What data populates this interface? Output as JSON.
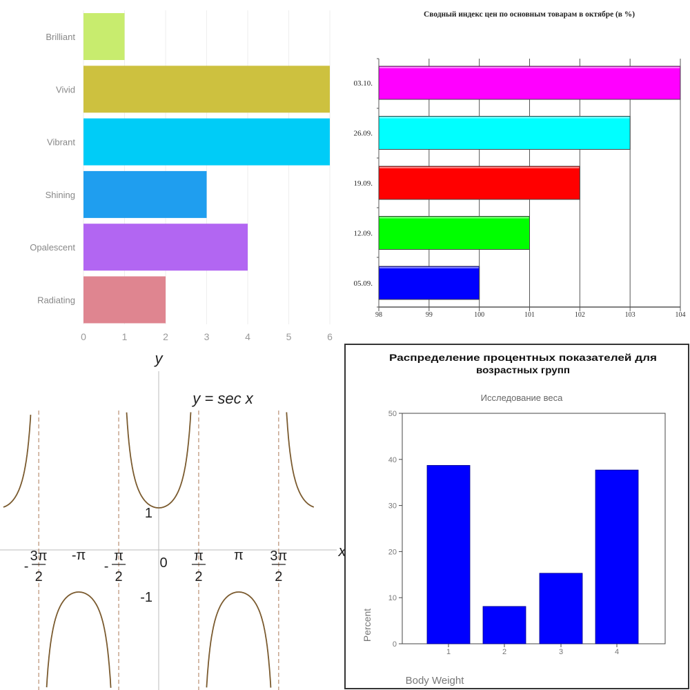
{
  "chart_data": [
    {
      "type": "bar",
      "orientation": "horizontal",
      "categories": [
        "Brilliant",
        "Vivid",
        "Vibrant",
        "Shining",
        "Opalescent",
        "Radiating"
      ],
      "values": [
        1,
        6,
        6,
        3,
        4,
        2
      ],
      "colors": [
        "#c8ec6e",
        "#cdc13f",
        "#00ccf7",
        "#1f9eef",
        "#b266f2",
        "#df8590"
      ],
      "xlim": [
        0,
        6
      ],
      "xticks": [
        "0",
        "1",
        "2",
        "3",
        "4",
        "5",
        "6"
      ],
      "grid": true
    },
    {
      "type": "bar",
      "orientation": "horizontal",
      "title": "Сводный индекс цен по основным товарам в октябре (в %)",
      "categories": [
        "03.10.",
        "26.09.",
        "19.09.",
        "12.09.",
        "05.09."
      ],
      "values": [
        104,
        103,
        102,
        101,
        100
      ],
      "colors": [
        "#ff00ff",
        "#00ffff",
        "#ff0000",
        "#00ff00",
        "#0000ff"
      ],
      "xlim": [
        98,
        104
      ],
      "xticks": [
        "98",
        "99",
        "100",
        "101",
        "102",
        "103",
        "104"
      ],
      "grid": true
    },
    {
      "type": "line",
      "function_label": "y = sec x",
      "xlabel": "x",
      "ylabel": "y",
      "x_tick_labels": [
        {
          "sign": "-",
          "num": "3π",
          "den": "2",
          "x": -4.712
        },
        {
          "sign": "",
          "num": "-π",
          "den": "",
          "x": -3.1416
        },
        {
          "sign": "-",
          "num": "π",
          "den": "2",
          "x": -1.5708
        },
        {
          "sign": "",
          "num": "0",
          "den": "",
          "x": 0
        },
        {
          "sign": "",
          "num": "π",
          "den": "2",
          "x": 1.5708
        },
        {
          "sign": "",
          "num": "π",
          "den": "",
          "x": 3.1416
        },
        {
          "sign": "",
          "num": "3π",
          "den": "2",
          "x": 4.712
        }
      ],
      "y_tick_labels": [
        {
          "label": "1",
          "y": 1
        },
        {
          "label": "-1",
          "y": -1
        }
      ],
      "asymptotes": [
        -4.712,
        -1.5708,
        1.5708,
        4.712
      ],
      "xlim": [
        -6.1,
        6.1
      ],
      "color": "#7a5a2e"
    },
    {
      "type": "bar",
      "title": "Распределение процентных показателей для возрастных групп",
      "subtitle": "Исследование веса",
      "categories": [
        "1",
        "2",
        "3",
        "4"
      ],
      "values": [
        38.7,
        8.1,
        15.3,
        37.7
      ],
      "xlabel": "Body Weight",
      "ylabel": "Percent",
      "ylim": [
        0,
        50
      ],
      "yticks": [
        "0",
        "10",
        "20",
        "30",
        "40",
        "50"
      ],
      "color": "#0000ff"
    }
  ]
}
